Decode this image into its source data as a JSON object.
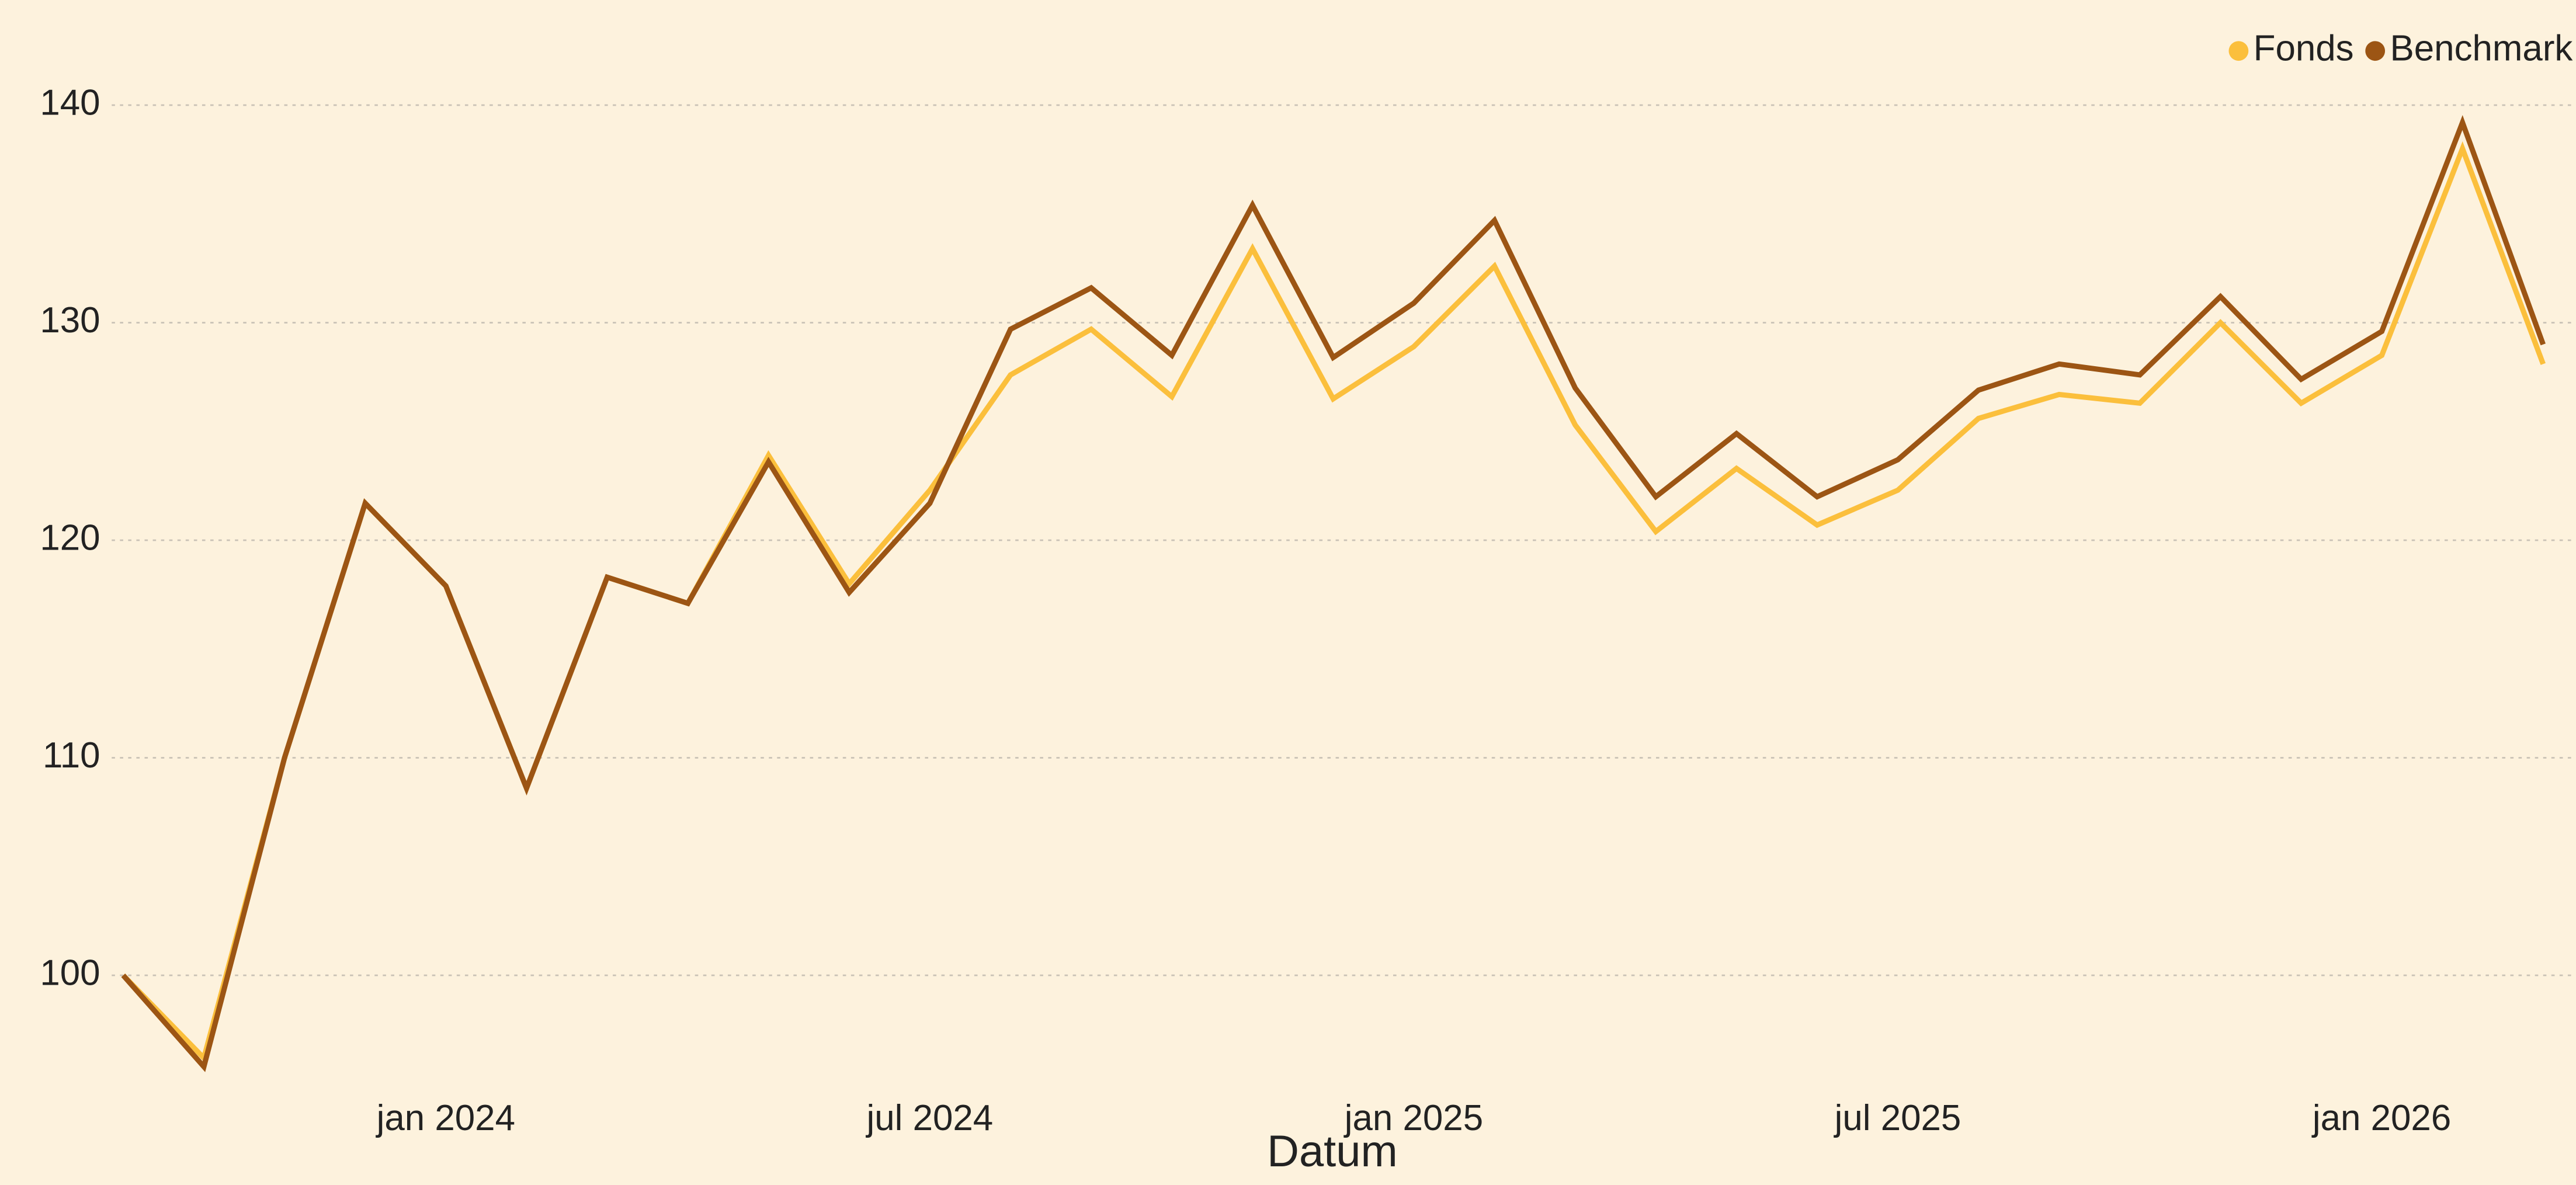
{
  "chart_data": {
    "type": "line",
    "x_label": "Datum",
    "x": [
      "2023-09",
      "2023-10",
      "2023-11",
      "2023-12",
      "2024-01",
      "2024-02",
      "2024-03",
      "2024-04",
      "2024-05",
      "2024-06",
      "2024-07",
      "2024-08",
      "2024-09",
      "2024-10",
      "2024-11",
      "2024-12",
      "2025-01",
      "2025-02",
      "2025-03",
      "2025-04",
      "2025-05",
      "2025-06",
      "2025-07",
      "2025-08",
      "2025-09",
      "2025-10",
      "2025-11",
      "2025-12",
      "2026-01",
      "2026-02",
      "2026-03"
    ],
    "series": [
      {
        "name": "Fonds",
        "color": "#fbbf3c",
        "values": [
          100,
          96.2,
          110,
          121.7,
          117.9,
          108.6,
          118.3,
          117.1,
          123.9,
          118.0,
          122.3,
          127.6,
          129.7,
          126.6,
          133.4,
          126.5,
          128.9,
          132.6,
          125.3,
          120.4,
          123.3,
          120.7,
          122.3,
          125.6,
          126.7,
          126.3,
          130.0,
          126.3,
          128.5,
          138.0,
          128.1
        ]
      },
      {
        "name": "Benchmark",
        "color": "#9c5514",
        "values": [
          100,
          95.8,
          110,
          121.7,
          117.9,
          108.6,
          118.3,
          117.1,
          123.6,
          117.6,
          121.7,
          129.7,
          131.6,
          128.5,
          135.4,
          128.4,
          130.9,
          134.7,
          127.0,
          122.0,
          124.9,
          122.0,
          123.7,
          126.9,
          128.1,
          127.6,
          131.2,
          127.4,
          129.6,
          139.2,
          129.0
        ]
      }
    ],
    "xlim": [
      "2023-09",
      "2026-03"
    ],
    "xticks": [
      {
        "value": "2024-01",
        "label": "jan 2024"
      },
      {
        "value": "2024-07",
        "label": "jul 2024"
      },
      {
        "value": "2025-01",
        "label": "jan 2025"
      },
      {
        "value": "2025-07",
        "label": "jul 2025"
      },
      {
        "value": "2026-01",
        "label": "jan 2026"
      }
    ],
    "ylim": [
      95,
      142
    ],
    "yticks": [
      100,
      110,
      120,
      130,
      140
    ],
    "grid": true,
    "legend": "top-right"
  }
}
